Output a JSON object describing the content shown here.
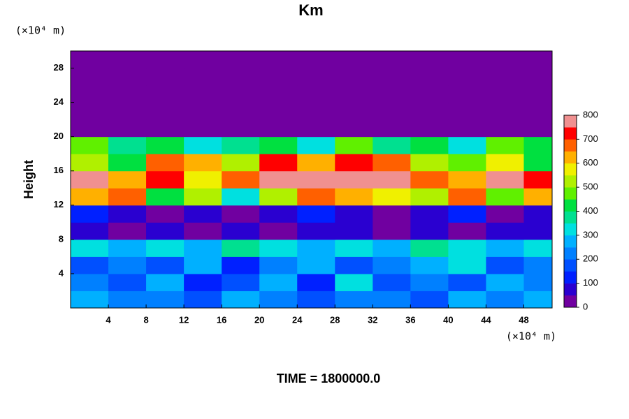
{
  "chart_data": {
    "type": "heatmap",
    "title": "Km",
    "ylabel": "Height",
    "y_unit": "(×10⁴ m)",
    "x_unit": "(×10⁴ m)",
    "footer": "TIME = 1800000.0",
    "xlim": [
      0,
      51
    ],
    "ylim": [
      0,
      30
    ],
    "xticks": [
      4,
      8,
      12,
      16,
      20,
      24,
      28,
      32,
      36,
      40,
      44,
      48
    ],
    "yticks": [
      4,
      8,
      12,
      16,
      20,
      24,
      28
    ],
    "x_edges": [
      0,
      4,
      8,
      12,
      16,
      20,
      24,
      28,
      32,
      36,
      40,
      44,
      48,
      52
    ],
    "y_edges": [
      0,
      2,
      4,
      6,
      8,
      10,
      12,
      14,
      16,
      18,
      20,
      22,
      24,
      26,
      28,
      30
    ],
    "z": [
      [
        250,
        200,
        200,
        150,
        250,
        200,
        150,
        200,
        200,
        150,
        250,
        200,
        250
      ],
      [
        200,
        150,
        250,
        100,
        150,
        250,
        100,
        300,
        150,
        200,
        150,
        250,
        200
      ],
      [
        150,
        200,
        150,
        250,
        100,
        200,
        250,
        150,
        200,
        250,
        300,
        150,
        200
      ],
      [
        300,
        250,
        300,
        250,
        350,
        300,
        250,
        300,
        250,
        350,
        300,
        250,
        300
      ],
      [
        50,
        0,
        50,
        0,
        50,
        0,
        50,
        50,
        0,
        50,
        0,
        50,
        50
      ],
      [
        100,
        50,
        0,
        50,
        0,
        50,
        100,
        50,
        0,
        50,
        100,
        0,
        50
      ],
      [
        600,
        650,
        400,
        500,
        300,
        500,
        650,
        600,
        550,
        500,
        650,
        450,
        600
      ],
      [
        750,
        600,
        700,
        550,
        650,
        800,
        800,
        800,
        750,
        650,
        600,
        750,
        700
      ],
      [
        500,
        400,
        650,
        600,
        500,
        700,
        600,
        700,
        650,
        500,
        450,
        550,
        400
      ],
      [
        450,
        350,
        400,
        300,
        350,
        400,
        300,
        450,
        350,
        400,
        300,
        450,
        400
      ],
      [
        0,
        0,
        0,
        0,
        0,
        0,
        0,
        0,
        0,
        0,
        0,
        0,
        0
      ],
      [
        0,
        0,
        0,
        0,
        0,
        0,
        0,
        0,
        0,
        0,
        0,
        0,
        0
      ],
      [
        0,
        0,
        0,
        0,
        0,
        0,
        0,
        0,
        0,
        0,
        0,
        0,
        0
      ],
      [
        0,
        0,
        0,
        0,
        0,
        0,
        0,
        0,
        0,
        0,
        0,
        0,
        0
      ],
      [
        0,
        0,
        0,
        0,
        0,
        0,
        0,
        0,
        0,
        0,
        0,
        0,
        0
      ]
    ],
    "clim": [
      0,
      800
    ],
    "colorbar_ticks": [
      0,
      100,
      200,
      300,
      400,
      500,
      600,
      700,
      800
    ],
    "colors": [
      "#7000a0",
      "#2a00d0",
      "#0020ff",
      "#0050ff",
      "#0080ff",
      "#00b0ff",
      "#00e0e0",
      "#00e090",
      "#00e040",
      "#60f000",
      "#b0f000",
      "#f0f000",
      "#ffb000",
      "#ff6000",
      "#ff0000",
      "#f09090"
    ]
  }
}
